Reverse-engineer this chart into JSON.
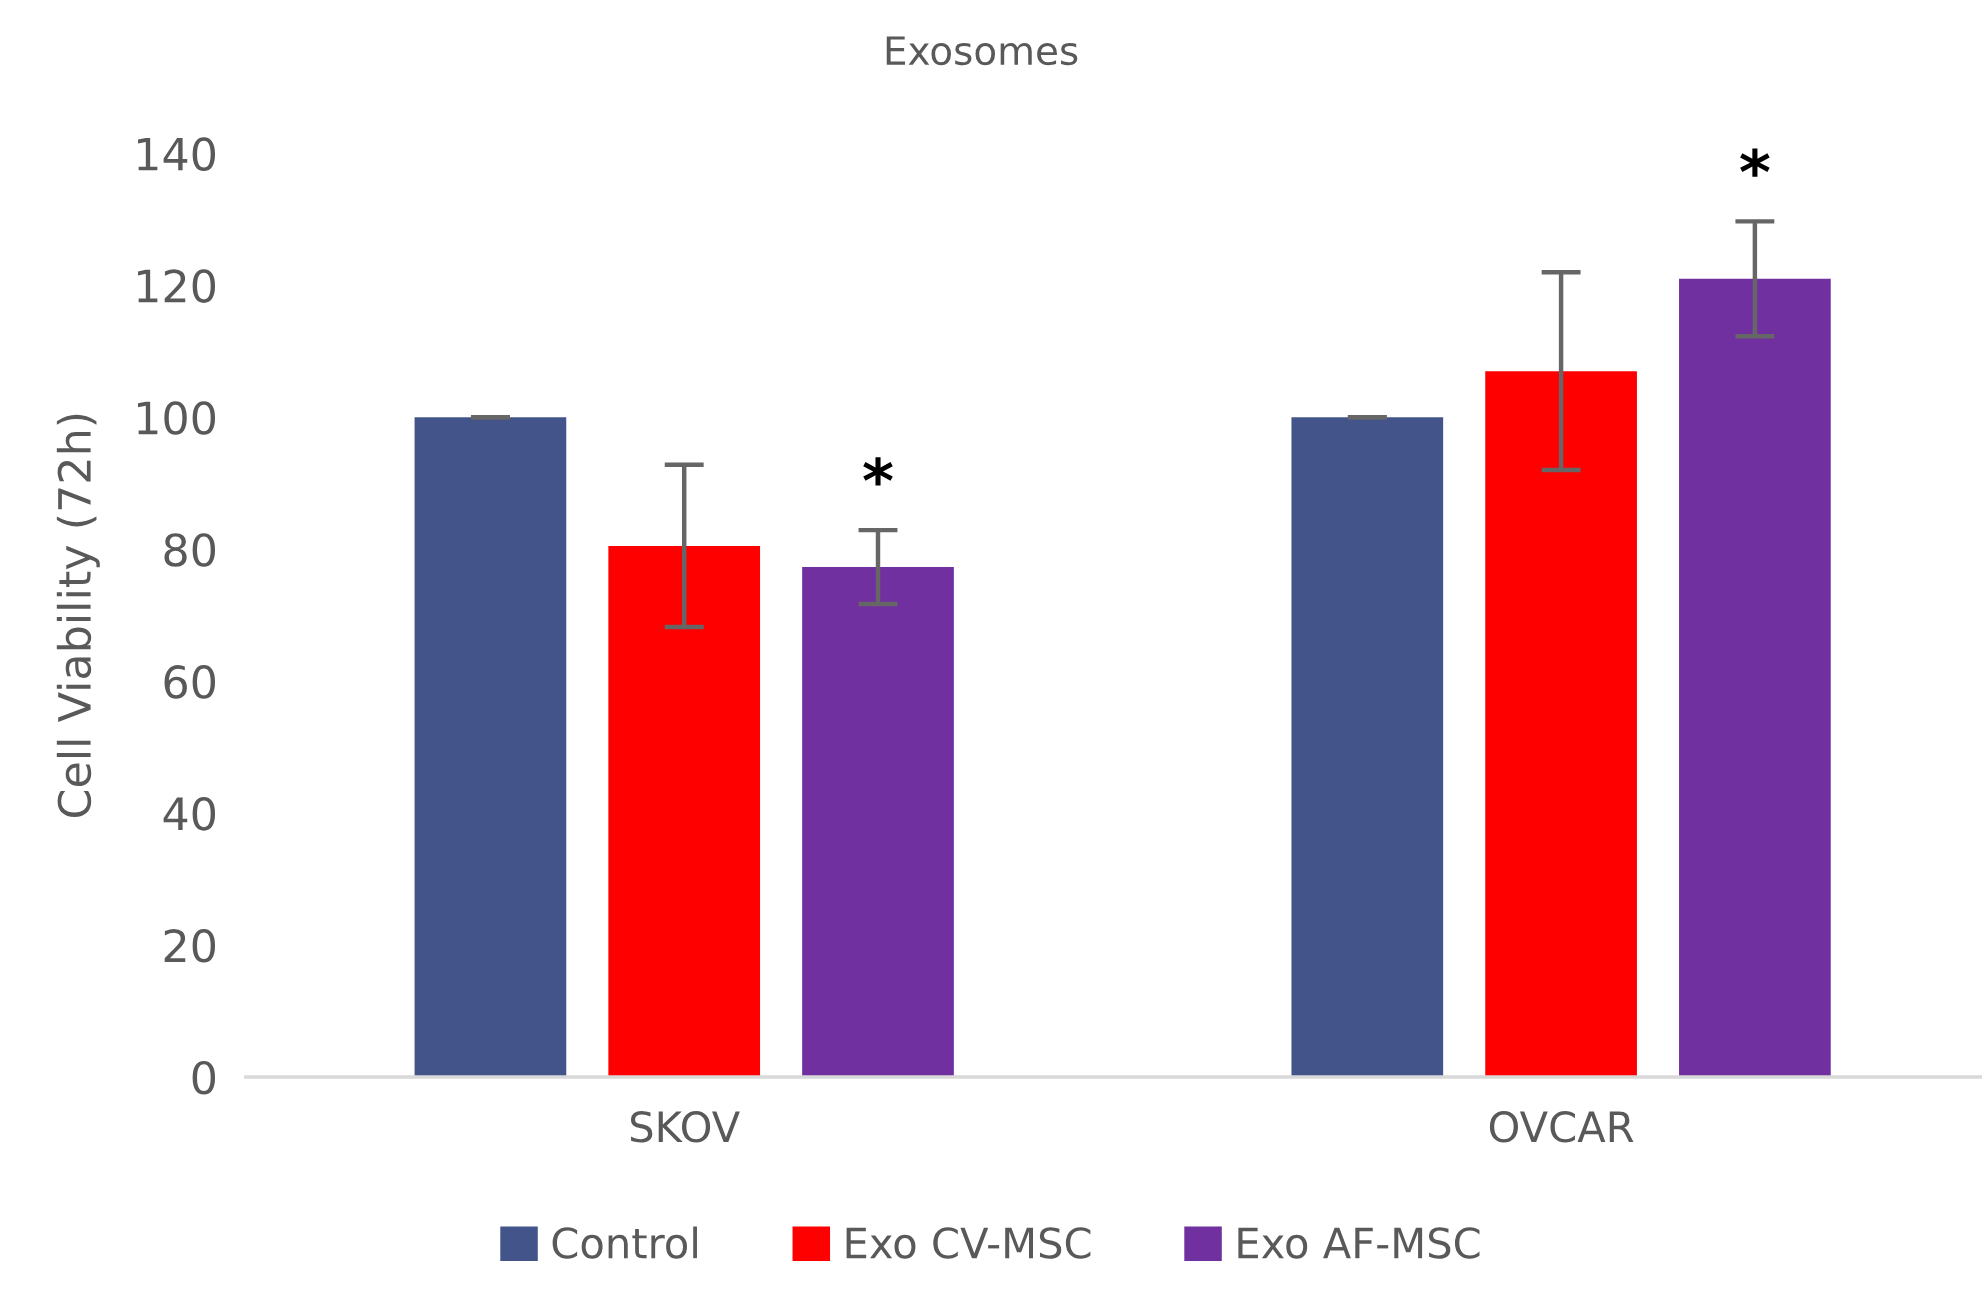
{
  "chart_data": {
    "type": "bar",
    "title": "Exosomes",
    "ylabel": "Cell Viability (72h)",
    "categories": [
      "SKOV",
      "OVCAR"
    ],
    "series": [
      {
        "name": "Control",
        "color": "#43548a",
        "values": [
          100,
          100
        ],
        "errors": [
          0,
          0
        ]
      },
      {
        "name": "Exo CV-MSC",
        "color": "#ff0000",
        "values": [
          80.5,
          107
        ],
        "errors": [
          12.3,
          15
        ]
      },
      {
        "name": "Exo AF-MSC",
        "color": "#7030a0",
        "values": [
          77.3,
          121
        ],
        "errors": [
          5.6,
          8.7
        ]
      }
    ],
    "ylim": [
      0,
      140
    ],
    "yticks": [
      0,
      20,
      40,
      60,
      80,
      100,
      120,
      140
    ],
    "legend": "bottom",
    "annotations": [
      "*",
      "*"
    ]
  }
}
